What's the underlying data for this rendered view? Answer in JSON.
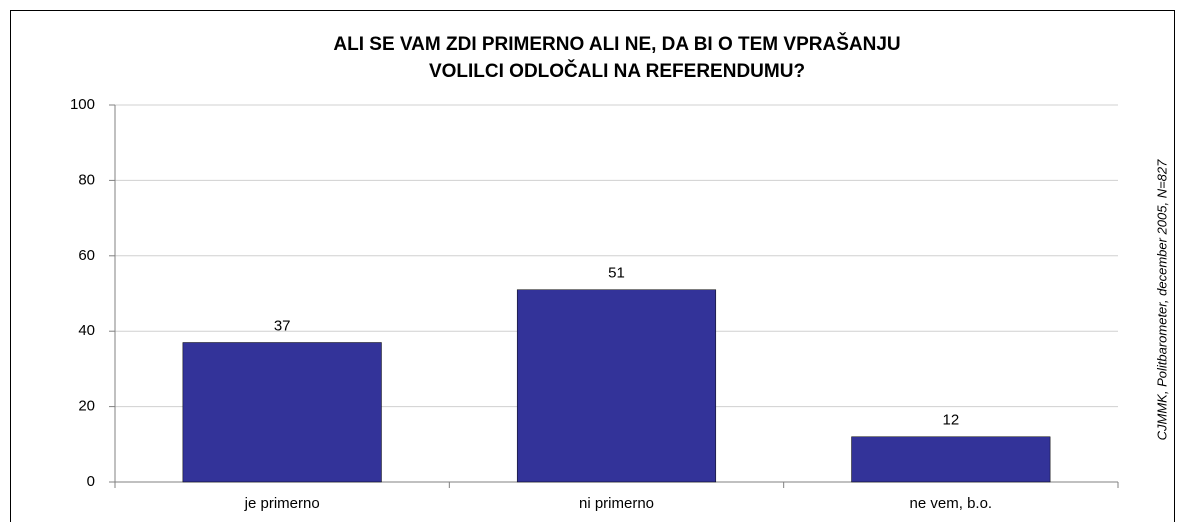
{
  "chart_data": {
    "type": "bar",
    "title": [
      "ALI SE VAM ZDI PRIMERNO ALI NE, DA BI O TEM VPRAŠANJU",
      "VOLILCI ODLOČALI NA REFERENDUMU?"
    ],
    "categories": [
      "je primerno",
      "ni primerno",
      "ne vem, b.o."
    ],
    "values": [
      37,
      51,
      12
    ],
    "color": "#333399",
    "ylim": [
      0,
      100
    ],
    "yticks": [
      0,
      20,
      40,
      60,
      80,
      100
    ],
    "grid": true,
    "annotation": "CJMMK, Politbarometer, december 2005, N=827"
  }
}
